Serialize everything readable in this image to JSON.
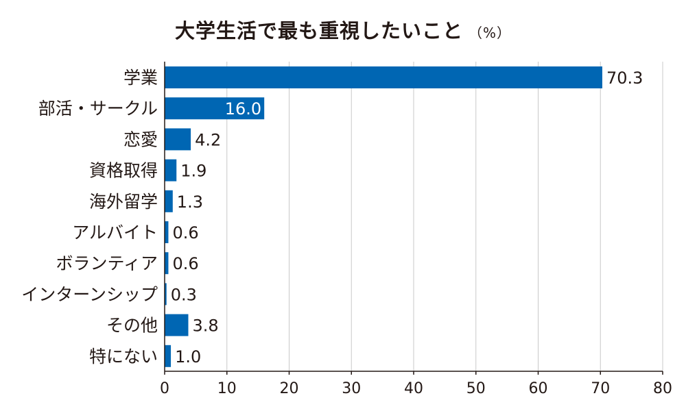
{
  "chart_data": {
    "type": "bar",
    "orientation": "horizontal",
    "title": "大学生活で最も重視したいこと",
    "unit": "（%）",
    "categories": [
      "学業",
      "部活・サークル",
      "恋愛",
      "資格取得",
      "海外留学",
      "アルバイト",
      "ボランティア",
      "インターンシップ",
      "その他",
      "特にない"
    ],
    "values": [
      70.3,
      16.0,
      4.2,
      1.9,
      1.3,
      0.6,
      0.6,
      0.3,
      3.8,
      1.0
    ],
    "value_labels": [
      "70.3",
      "16.0",
      "4.2",
      "1.9",
      "1.3",
      "0.6",
      "0.6",
      "0.3",
      "3.8",
      "1.0"
    ],
    "xlim": [
      0,
      80
    ],
    "xticks": [
      0,
      10,
      20,
      30,
      40,
      50,
      60,
      70,
      80
    ],
    "grid": true,
    "colors": {
      "bar": "#0066b3",
      "grid": "#c8c8c8",
      "axis": "#231815"
    }
  }
}
